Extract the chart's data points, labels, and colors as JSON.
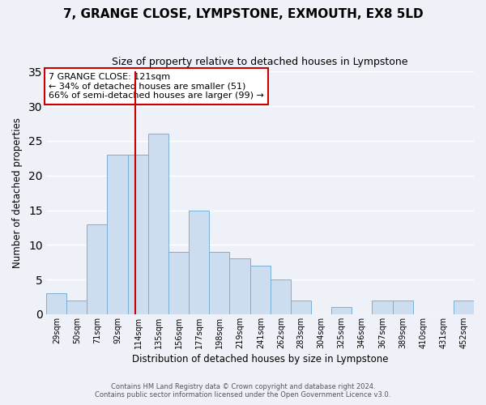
{
  "title": "7, GRANGE CLOSE, LYMPSTONE, EXMOUTH, EX8 5LD",
  "subtitle": "Size of property relative to detached houses in Lympstone",
  "xlabel": "Distribution of detached houses by size in Lympstone",
  "ylabel": "Number of detached properties",
  "footer_line1": "Contains HM Land Registry data © Crown copyright and database right 2024.",
  "footer_line2": "Contains public sector information licensed under the Open Government Licence v3.0.",
  "bin_labels": [
    "29sqm",
    "50sqm",
    "71sqm",
    "92sqm",
    "114sqm",
    "135sqm",
    "156sqm",
    "177sqm",
    "198sqm",
    "219sqm",
    "241sqm",
    "262sqm",
    "283sqm",
    "304sqm",
    "325sqm",
    "346sqm",
    "367sqm",
    "389sqm",
    "410sqm",
    "431sqm",
    "452sqm"
  ],
  "bar_values": [
    3,
    2,
    13,
    23,
    23,
    26,
    9,
    15,
    9,
    8,
    7,
    5,
    2,
    0,
    1,
    0,
    2,
    2,
    0,
    0,
    2
  ],
  "bar_color": "#ccddf0",
  "bar_edge_color": "#7aafd4",
  "vline_x": 121,
  "bin_edges": [
    29,
    50,
    71,
    92,
    114,
    135,
    156,
    177,
    198,
    219,
    241,
    262,
    283,
    304,
    325,
    346,
    367,
    389,
    410,
    431,
    452,
    473
  ],
  "annotation_title": "7 GRANGE CLOSE: 121sqm",
  "annotation_line2": "← 34% of detached houses are smaller (51)",
  "annotation_line3": "66% of semi-detached houses are larger (99) →",
  "annotation_box_color": "#cc0000",
  "ylim": [
    0,
    35
  ],
  "yticks": [
    0,
    5,
    10,
    15,
    20,
    25,
    30,
    35
  ],
  "background_color": "#eef2f8",
  "plot_background": "#eef2f8",
  "grid_color": "#ffffff"
}
